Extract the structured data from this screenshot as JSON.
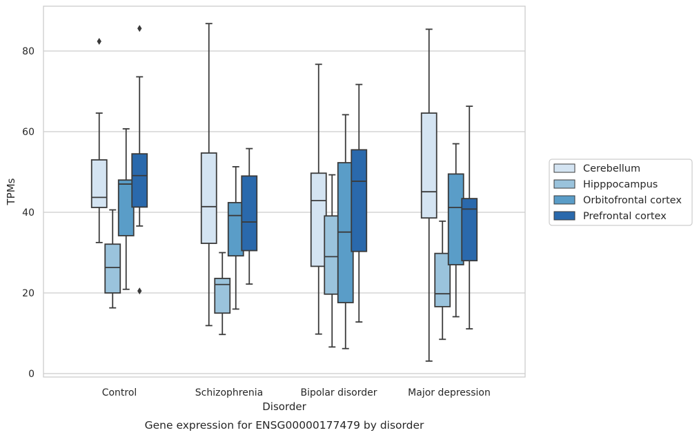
{
  "chart_data": {
    "type": "box",
    "title": "",
    "caption": "Gene expression for ENSG00000177479 by disorder",
    "xlabel": "Disorder",
    "ylabel": "TPMs",
    "ylim": [
      -1,
      91
    ],
    "yticks": [
      0,
      20,
      40,
      60,
      80
    ],
    "grid": "horizontal",
    "legend_position": "right",
    "categories": [
      "Control",
      "Schizophrenia",
      "Bipolar disorder",
      "Major depression"
    ],
    "series": [
      {
        "name": "Cerebellum",
        "color": "#d4e4f2",
        "boxes": [
          {
            "whislo": 32.5,
            "q1": 41.2,
            "med": 43.7,
            "q3": 53.0,
            "whishi": 64.6,
            "fliers": [
              82.4
            ]
          },
          {
            "whislo": 11.9,
            "q1": 32.3,
            "med": 41.4,
            "q3": 54.7,
            "whishi": 86.8,
            "fliers": []
          },
          {
            "whislo": 9.8,
            "q1": 26.6,
            "med": 42.9,
            "q3": 49.7,
            "whishi": 76.7,
            "fliers": []
          },
          {
            "whislo": 3.1,
            "q1": 38.6,
            "med": 45.1,
            "q3": 64.6,
            "whishi": 85.4,
            "fliers": []
          }
        ]
      },
      {
        "name": "Hipppocampus",
        "color": "#9ac3dc",
        "boxes": [
          {
            "whislo": 16.3,
            "q1": 20.0,
            "med": 26.3,
            "q3": 32.1,
            "whishi": 40.6,
            "fliers": []
          },
          {
            "whislo": 9.7,
            "q1": 15.0,
            "med": 22.1,
            "q3": 23.6,
            "whishi": 30.0,
            "fliers": []
          },
          {
            "whislo": 6.6,
            "q1": 19.7,
            "med": 29.0,
            "q3": 39.1,
            "whishi": 49.3,
            "fliers": []
          },
          {
            "whislo": 8.5,
            "q1": 16.6,
            "med": 19.8,
            "q3": 29.8,
            "whishi": 37.8,
            "fliers": []
          }
        ]
      },
      {
        "name": "Orbitofrontal cortex",
        "color": "#5a9dc8",
        "boxes": [
          {
            "whislo": 20.9,
            "q1": 34.2,
            "med": 47.0,
            "q3": 48.0,
            "whishi": 60.7,
            "fliers": []
          },
          {
            "whislo": 16.0,
            "q1": 29.2,
            "med": 39.2,
            "q3": 42.4,
            "whishi": 51.3,
            "fliers": []
          },
          {
            "whislo": 6.2,
            "q1": 17.6,
            "med": 35.1,
            "q3": 52.3,
            "whishi": 64.2,
            "fliers": []
          },
          {
            "whislo": 14.1,
            "q1": 27.0,
            "med": 41.2,
            "q3": 49.5,
            "whishi": 57.0,
            "fliers": []
          }
        ]
      },
      {
        "name": "Prefrontal cortex",
        "color": "#2a69ac",
        "boxes": [
          {
            "whislo": 36.6,
            "q1": 41.3,
            "med": 49.1,
            "q3": 54.5,
            "whishi": 73.6,
            "fliers": [
              85.6,
              20.5
            ]
          },
          {
            "whislo": 22.2,
            "q1": 30.5,
            "med": 37.6,
            "q3": 49.0,
            "whishi": 55.8,
            "fliers": []
          },
          {
            "whislo": 12.8,
            "q1": 30.3,
            "med": 47.7,
            "q3": 55.5,
            "whishi": 71.7,
            "fliers": []
          },
          {
            "whislo": 11.1,
            "q1": 28.0,
            "med": 40.8,
            "q3": 43.4,
            "whishi": 66.3,
            "fliers": []
          }
        ]
      }
    ]
  }
}
